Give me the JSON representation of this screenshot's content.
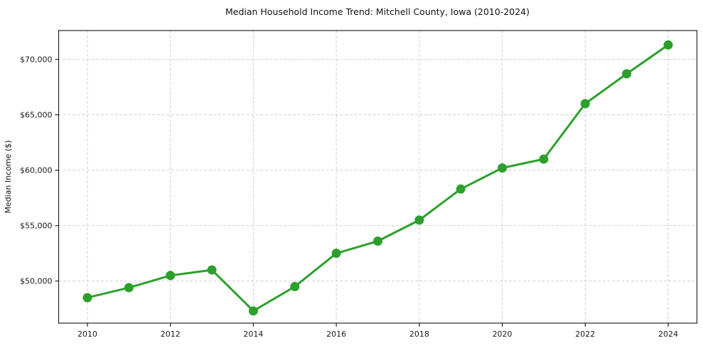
{
  "chart_data": {
    "type": "line",
    "title": "Median Household Income Trend: Mitchell County, Iowa (2010-2024)",
    "xlabel": "",
    "ylabel": "Median Income ($)",
    "x": [
      2010,
      2011,
      2012,
      2013,
      2014,
      2015,
      2016,
      2017,
      2018,
      2019,
      2020,
      2021,
      2022,
      2023,
      2024
    ],
    "values": [
      48500,
      49400,
      50500,
      51000,
      47300,
      49500,
      52500,
      53600,
      55500,
      58300,
      60200,
      61000,
      66000,
      68700,
      71300
    ],
    "line_color": "#2ca02c",
    "marker": "circle",
    "marker_radius": 6.5,
    "line_width": 3,
    "ylim": [
      46200,
      72600
    ],
    "xlim": [
      2010,
      2024
    ],
    "yticks": [
      {
        "value": 50000,
        "label": "$50,000"
      },
      {
        "value": 55000,
        "label": "$55,000"
      },
      {
        "value": 60000,
        "label": "$60,000"
      },
      {
        "value": 65000,
        "label": "$65,000"
      },
      {
        "value": 70000,
        "label": "$70,000"
      }
    ],
    "xticks": [
      {
        "value": 2010,
        "label": "2010"
      },
      {
        "value": 2012,
        "label": "2012"
      },
      {
        "value": 2014,
        "label": "2014"
      },
      {
        "value": 2016,
        "label": "2016"
      },
      {
        "value": 2018,
        "label": "2018"
      },
      {
        "value": 2020,
        "label": "2020"
      },
      {
        "value": 2022,
        "label": "2022"
      },
      {
        "value": 2024,
        "label": "2024"
      }
    ],
    "grid": true,
    "grid_style": "dashed",
    "grid_color": "#cfcfcf",
    "legend": "none",
    "background_color": "#ffffff"
  }
}
